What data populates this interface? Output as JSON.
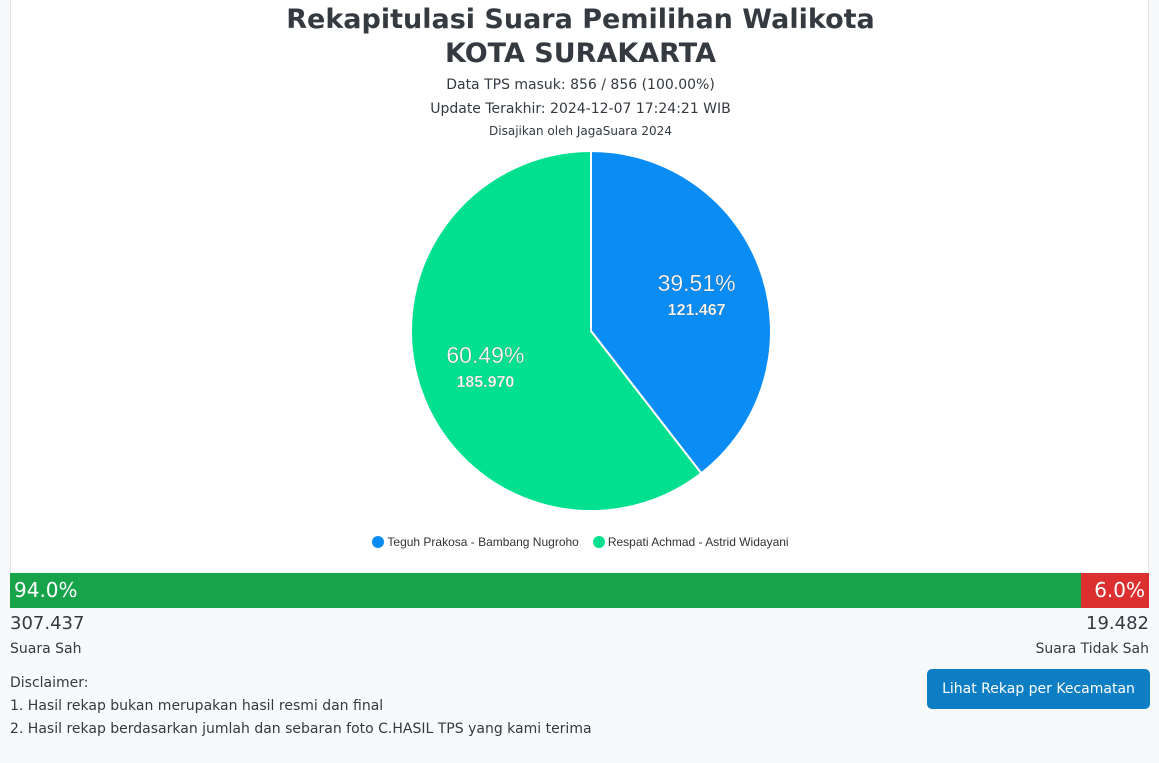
{
  "header": {
    "title_line1": "Rekapitulasi Suara Pemilihan Walikota",
    "title_line2": "KOTA SURAKARTA",
    "tps_info": "Data TPS masuk: 856 / 856 (100.00%)",
    "last_update": "Update Terakhir: 2024-12-07 17:24:21 WIB",
    "presented_by": "Disajikan oleh JagaSuara 2024"
  },
  "chart_data": {
    "type": "pie",
    "title": "",
    "legend_position": "bottom",
    "slices": [
      {
        "name": "Teguh Prakosa - Bambang Nugroho",
        "value": 121467,
        "value_label": "121.467",
        "percent_label": "39.51%",
        "color": "#0a8cf5"
      },
      {
        "name": "Respati Achmad - Astrid Widayani",
        "value": 185970,
        "value_label": "185.970",
        "percent_label": "60.49%",
        "color": "#00e08f"
      }
    ]
  },
  "votes": {
    "valid_percent": 94.0,
    "valid_percent_label": "94.0%",
    "valid_count": "307.437",
    "valid_label": "Suara Sah",
    "invalid_percent": 6.0,
    "invalid_percent_label": "6.0%",
    "invalid_count": "19.482",
    "invalid_label": "Suara Tidak Sah",
    "valid_color": "#16a34a",
    "invalid_color": "#dc2f2f"
  },
  "disclaimer": {
    "heading": "Disclaimer:",
    "items": [
      "1. Hasil rekap bukan merupakan hasil resmi dan final",
      "2. Hasil rekap berdasarkan jumlah dan sebaran foto C.HASIL TPS yang kami terima"
    ]
  },
  "actions": {
    "recap_button": "Lihat Rekap per Kecamatan"
  }
}
